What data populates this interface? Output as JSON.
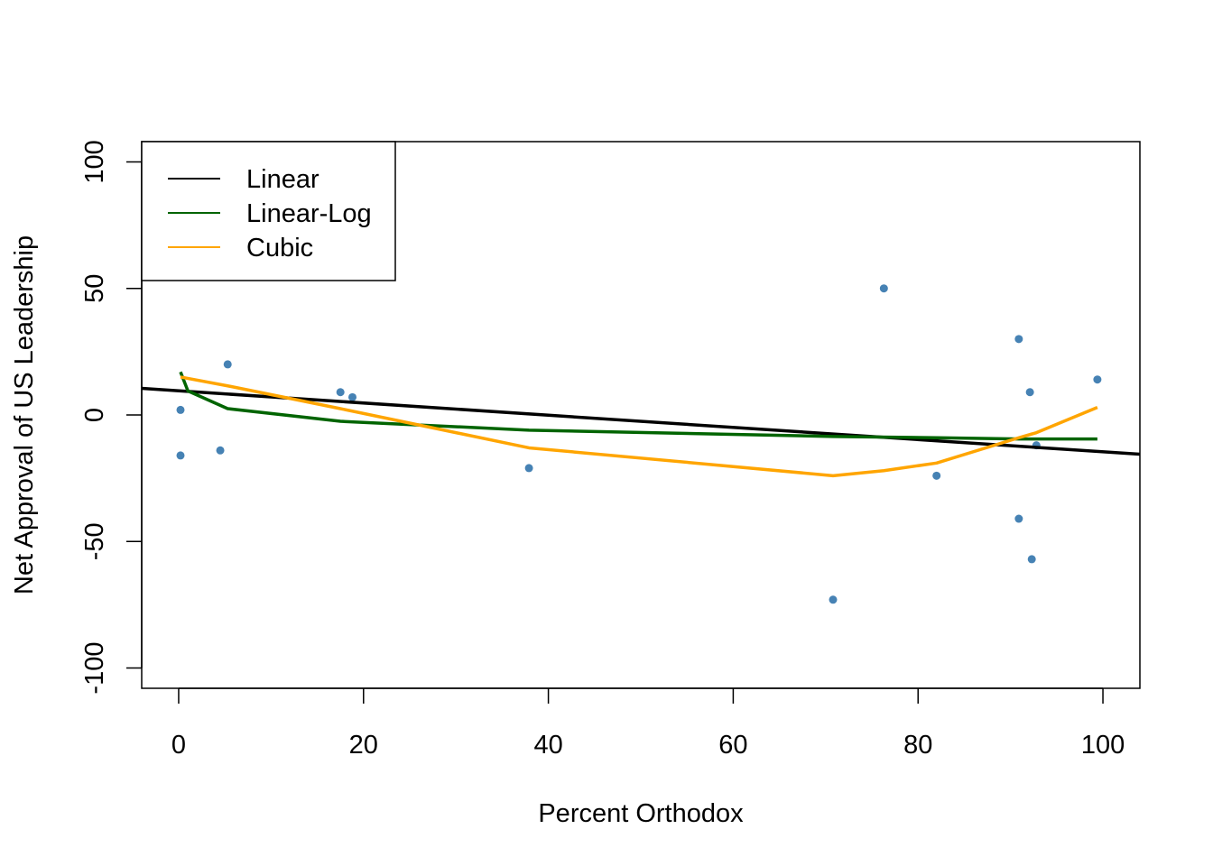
{
  "chart_data": {
    "type": "scatter",
    "title": "",
    "xlabel": "Percent Orthodox",
    "ylabel": "Net Approval of US Leadership",
    "xlim": [
      -4,
      104
    ],
    "ylim": [
      -108,
      108
    ],
    "x_ticks": [
      0,
      20,
      40,
      60,
      80,
      100
    ],
    "x_tick_labels": [
      "0",
      "20",
      "40",
      "60",
      "80",
      "100"
    ],
    "y_ticks": [
      -100,
      -50,
      0,
      50,
      100
    ],
    "y_tick_labels": [
      "-100",
      "-50",
      "0",
      "50",
      "100"
    ],
    "grid": false,
    "legend_position": "top-left",
    "point_color": "#4682B4",
    "points": [
      {
        "x": 0.2,
        "y": 2
      },
      {
        "x": 0.2,
        "y": -16
      },
      {
        "x": 4.5,
        "y": -14
      },
      {
        "x": 5.3,
        "y": 20
      },
      {
        "x": 17.5,
        "y": 9
      },
      {
        "x": 18.8,
        "y": 7
      },
      {
        "x": 37.9,
        "y": -21
      },
      {
        "x": 70.8,
        "y": -73
      },
      {
        "x": 76.3,
        "y": 50
      },
      {
        "x": 82.0,
        "y": -24
      },
      {
        "x": 90.9,
        "y": 30
      },
      {
        "x": 90.9,
        "y": -41
      },
      {
        "x": 92.1,
        "y": 9
      },
      {
        "x": 92.3,
        "y": -57
      },
      {
        "x": 92.8,
        "y": -12
      },
      {
        "x": 99.4,
        "y": 14
      }
    ],
    "series": [
      {
        "name": "Linear",
        "color": "#000000",
        "x": [
          -4,
          104
        ],
        "y": [
          10.5,
          -15.5
        ]
      },
      {
        "name": "Linear-Log",
        "color": "#006400",
        "x": [
          0.2,
          1,
          5.3,
          17.5,
          37.9,
          70.8,
          82.0,
          90.9,
          99.4
        ],
        "y": [
          17,
          9.5,
          2.5,
          -2.5,
          -6,
          -8.5,
          -9,
          -9.5,
          -9.5
        ]
      },
      {
        "name": "Cubic",
        "color": "#FFA500",
        "x": [
          0.2,
          5.3,
          17.5,
          37.9,
          70.8,
          76.3,
          82.0,
          90.9,
          92.8,
          99.4
        ],
        "y": [
          15,
          11.5,
          2.5,
          -13,
          -24,
          -22,
          -19,
          -9,
          -7,
          3
        ]
      }
    ]
  }
}
